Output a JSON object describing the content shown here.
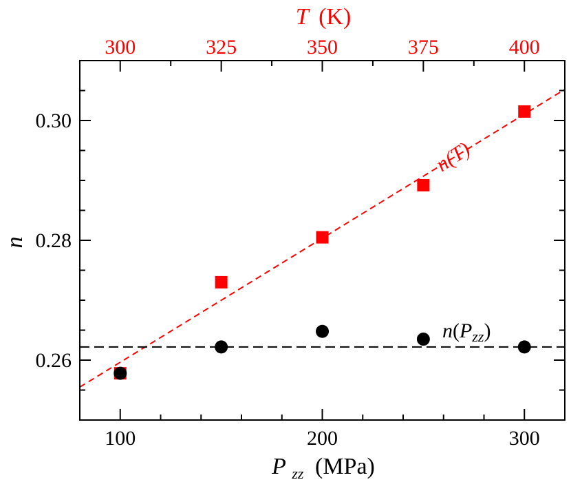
{
  "chart_data": {
    "type": "scatter",
    "title": "",
    "grid": false,
    "colors": {
      "temperature": "#ff0000",
      "pressure": "#000000",
      "axis": "#000000"
    },
    "x_bottom": {
      "label_main": "P",
      "label_sub": "zz",
      "label_unit": "(MPa)",
      "range": [
        80,
        320
      ],
      "ticks": [
        100,
        200,
        300
      ],
      "tick_labels": [
        "100",
        "200",
        "300"
      ],
      "minor_step": 20
    },
    "x_top": {
      "label_main": "T",
      "label_unit": "(K)",
      "range": [
        290,
        410
      ],
      "ticks": [
        300,
        325,
        350,
        375,
        400
      ],
      "tick_labels": [
        "300",
        "325",
        "350",
        "375",
        "400"
      ],
      "minor_step": 12.5
    },
    "y": {
      "label": "n",
      "range": [
        0.25,
        0.31
      ],
      "ticks": [
        0.26,
        0.28,
        0.3
      ],
      "tick_labels": [
        "0.26",
        "0.28",
        "0.30"
      ],
      "minor_step": 0.005
    },
    "series": [
      {
        "name": "n(T)",
        "axis": "top",
        "marker": "square",
        "color": "#ff0000",
        "x": [
          300,
          325,
          350,
          375,
          400
        ],
        "y": [
          0.2578,
          0.273,
          0.2805,
          0.2892,
          0.3015
        ],
        "fit_line": {
          "from": [
            290,
            0.2555
          ],
          "to": [
            410,
            0.3052
          ]
        }
      },
      {
        "name": "n(Pzz)",
        "axis": "bottom",
        "marker": "circle",
        "color": "#000000",
        "x": [
          100,
          150,
          200,
          250,
          300
        ],
        "y": [
          0.2578,
          0.2622,
          0.2648,
          0.2635,
          0.2622
        ],
        "fit_line": {
          "from": [
            80,
            0.2622
          ],
          "to": [
            320,
            0.2622
          ]
        }
      }
    ],
    "annotations": {
      "temperature": {
        "main": "n",
        "rest": "(T)"
      },
      "pressure": {
        "main": "n",
        "open": "(",
        "var": "P",
        "sub": "zz",
        "close": ")"
      }
    }
  }
}
